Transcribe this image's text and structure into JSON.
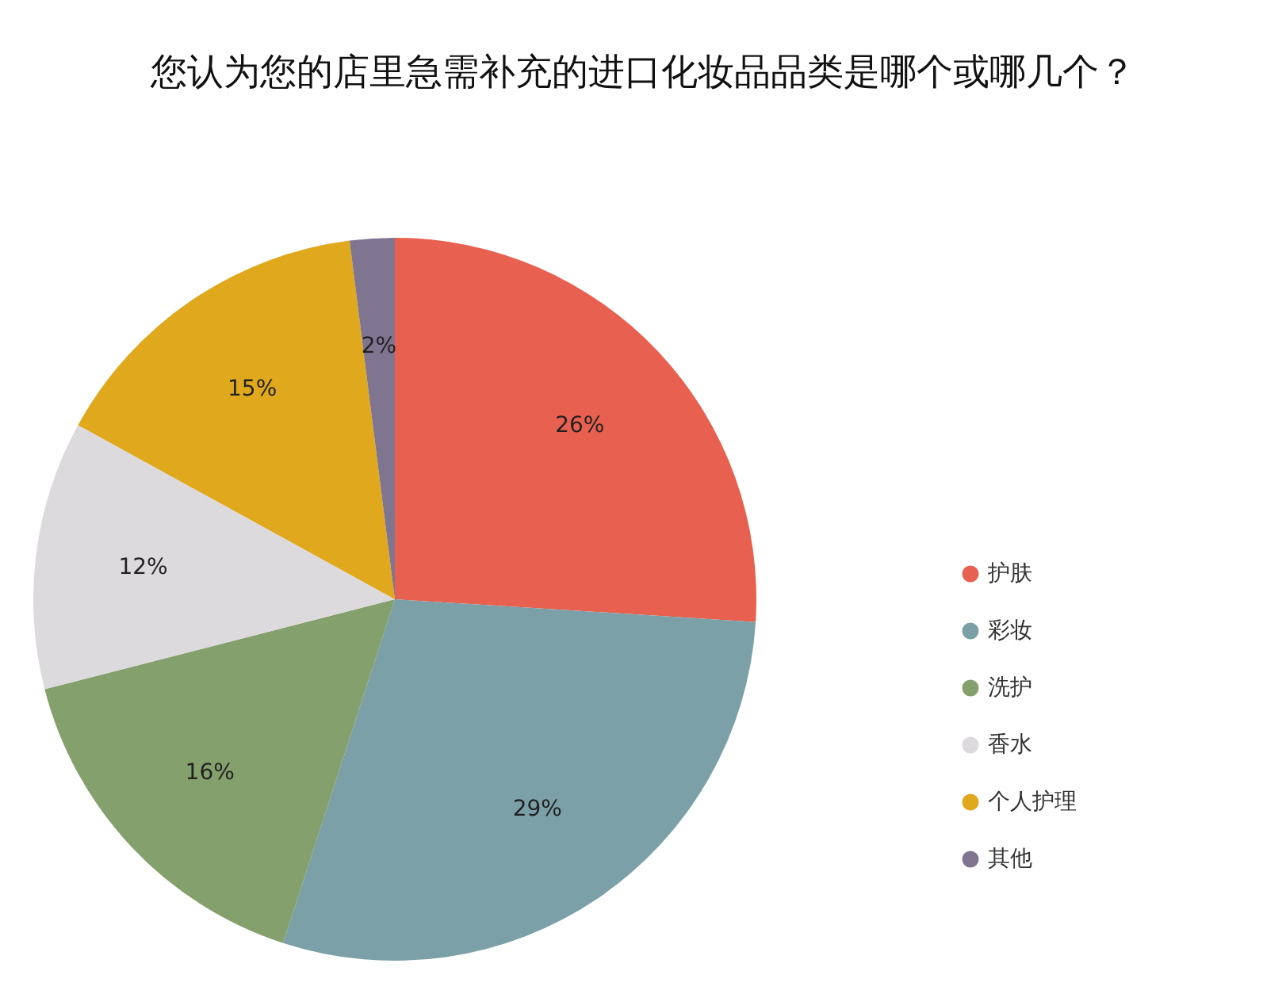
{
  "chart_data": {
    "type": "pie",
    "title": "您认为您的店里急需补充的进口化妆品品类是哪个或哪几个？",
    "categories": [
      "护肤",
      "彩妆",
      "洗护",
      "香水",
      "个人护理",
      "其他"
    ],
    "values": [
      26,
      29,
      16,
      12,
      15,
      2
    ],
    "value_labels": [
      "26%",
      "29%",
      "16%",
      "12%",
      "15%",
      "2%"
    ],
    "colors": [
      "#e8604f",
      "#7ba0a8",
      "#84a06c",
      "#dcdadc",
      "#e0a81c",
      "#7f7590"
    ],
    "legend": "right"
  }
}
